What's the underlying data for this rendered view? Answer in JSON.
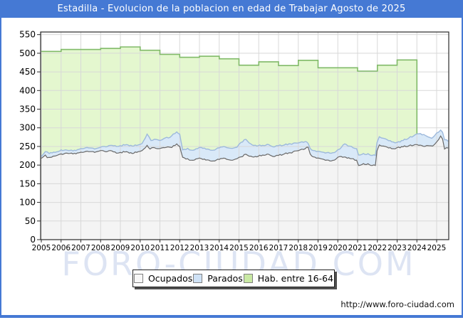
{
  "header": {
    "title": "Estadilla - Evolucion de la poblacion en edad de Trabajar Agosto de 2025"
  },
  "watermark": "FORO-CIUDAD.COM",
  "footer": {
    "url": "http://www.foro-ciudad.com"
  },
  "colors": {
    "frame_blue": "#4579d4",
    "plot_border": "#2a2a2a",
    "grid": "#d8d8d8",
    "hab_line": "#80ba68",
    "hab_fill": "#e4f7cf",
    "parados_line": "#9db9dc",
    "parados_fill": "#d9e9f8",
    "ocupados_line": "#686868",
    "ocupados_fill": "#f4f4f4",
    "watermark": "#dde4f3",
    "tick_label": "#000000"
  },
  "legend": {
    "items": [
      {
        "label": "Ocupados",
        "fill": "#f7f7f7",
        "border": "#808080"
      },
      {
        "label": "Parados",
        "fill": "#cfe2f6",
        "border": "#808080"
      },
      {
        "label": "Hab. entre 16-64",
        "fill": "#c9e9a4",
        "border": "#808080"
      }
    ]
  },
  "chart_data": {
    "type": "area",
    "title": "Estadilla - Evolucion de la poblacion en edad de Trabajar Agosto de 2025",
    "xlabel": "",
    "ylabel": "",
    "x_ticks": [
      2005,
      2006,
      2007,
      2008,
      2009,
      2010,
      2011,
      2012,
      2013,
      2014,
      2015,
      2016,
      2017,
      2018,
      2019,
      2020,
      2021,
      2022,
      2023,
      2024,
      2025
    ],
    "y_ticks": [
      0,
      50,
      100,
      150,
      200,
      250,
      300,
      350,
      400,
      450,
      500,
      550
    ],
    "ylim": [
      0,
      557
    ],
    "x_start": 2005.0,
    "x_end": 2025.58,
    "grid": true,
    "legend_position": "bottom-center",
    "series": [
      {
        "name": "Hab. entre 16-64",
        "mode": "yearly-step",
        "start_year": 2005,
        "end": 2024.0,
        "values": [
          505,
          510,
          510,
          513,
          517,
          508,
          497,
          489,
          492,
          485,
          468,
          477,
          467,
          481,
          461,
          461,
          452,
          468,
          482
        ]
      },
      {
        "name": "Parados",
        "mode": "stacked-top",
        "points": [
          [
            2005.0,
            223
          ],
          [
            2005.2,
            236
          ],
          [
            2005.4,
            231
          ],
          [
            2005.7,
            234
          ],
          [
            2006.0,
            241
          ],
          [
            2006.3,
            240
          ],
          [
            2006.6,
            238
          ],
          [
            2006.9,
            242
          ],
          [
            2007.1,
            244
          ],
          [
            2007.4,
            246
          ],
          [
            2007.7,
            243
          ],
          [
            2008.0,
            248
          ],
          [
            2008.2,
            250
          ],
          [
            2008.5,
            253
          ],
          [
            2008.8,
            250
          ],
          [
            2009.0,
            252
          ],
          [
            2009.3,
            255
          ],
          [
            2009.6,
            251
          ],
          [
            2009.9,
            254
          ],
          [
            2010.1,
            258
          ],
          [
            2010.35,
            283
          ],
          [
            2010.55,
            266
          ],
          [
            2010.8,
            269
          ],
          [
            2011.0,
            266
          ],
          [
            2011.2,
            271
          ],
          [
            2011.5,
            274
          ],
          [
            2011.85,
            289
          ],
          [
            2012.0,
            283
          ],
          [
            2012.15,
            241
          ],
          [
            2012.4,
            245
          ],
          [
            2012.6,
            240
          ],
          [
            2012.9,
            244
          ],
          [
            2013.1,
            247
          ],
          [
            2013.4,
            243
          ],
          [
            2013.7,
            240
          ],
          [
            2014.0,
            246
          ],
          [
            2014.3,
            249
          ],
          [
            2014.6,
            245
          ],
          [
            2014.9,
            248
          ],
          [
            2015.1,
            261
          ],
          [
            2015.35,
            269
          ],
          [
            2015.6,
            257
          ],
          [
            2015.9,
            251
          ],
          [
            2016.2,
            253
          ],
          [
            2016.5,
            255
          ],
          [
            2016.8,
            249
          ],
          [
            2017.0,
            252
          ],
          [
            2017.3,
            254
          ],
          [
            2017.6,
            257
          ],
          [
            2017.9,
            259
          ],
          [
            2018.1,
            261
          ],
          [
            2018.35,
            263
          ],
          [
            2018.5,
            258
          ],
          [
            2018.6,
            245
          ],
          [
            2018.75,
            239
          ],
          [
            2019.0,
            237
          ],
          [
            2019.3,
            234
          ],
          [
            2019.6,
            232
          ],
          [
            2019.9,
            236
          ],
          [
            2020.1,
            243
          ],
          [
            2020.35,
            257
          ],
          [
            2020.6,
            251
          ],
          [
            2020.95,
            244
          ],
          [
            2021.05,
            227
          ],
          [
            2021.3,
            231
          ],
          [
            2021.6,
            228
          ],
          [
            2021.9,
            226
          ],
          [
            2021.98,
            260
          ],
          [
            2022.1,
            276
          ],
          [
            2022.3,
            272
          ],
          [
            2022.5,
            268
          ],
          [
            2022.8,
            262
          ],
          [
            2023.0,
            261
          ],
          [
            2023.3,
            266
          ],
          [
            2023.6,
            273
          ],
          [
            2023.9,
            281
          ],
          [
            2024.1,
            284
          ],
          [
            2024.35,
            282
          ],
          [
            2024.55,
            276
          ],
          [
            2024.75,
            272
          ],
          [
            2024.9,
            279
          ],
          [
            2025.0,
            286
          ],
          [
            2025.2,
            294
          ],
          [
            2025.3,
            288
          ],
          [
            2025.4,
            268
          ],
          [
            2025.58,
            264
          ]
        ]
      },
      {
        "name": "Ocupados",
        "mode": "line",
        "points": [
          [
            2005.0,
            218
          ],
          [
            2005.2,
            227
          ],
          [
            2005.3,
            220
          ],
          [
            2005.6,
            224
          ],
          [
            2005.8,
            226
          ],
          [
            2006.0,
            230
          ],
          [
            2006.3,
            232
          ],
          [
            2006.6,
            230
          ],
          [
            2006.9,
            233
          ],
          [
            2007.1,
            234
          ],
          [
            2007.4,
            236
          ],
          [
            2007.7,
            234
          ],
          [
            2008.0,
            239
          ],
          [
            2008.2,
            237
          ],
          [
            2008.5,
            239
          ],
          [
            2008.8,
            232
          ],
          [
            2009.0,
            234
          ],
          [
            2009.3,
            236
          ],
          [
            2009.6,
            231
          ],
          [
            2009.9,
            236
          ],
          [
            2010.1,
            239
          ],
          [
            2010.35,
            253
          ],
          [
            2010.5,
            243
          ],
          [
            2010.7,
            247
          ],
          [
            2010.9,
            244
          ],
          [
            2011.1,
            246
          ],
          [
            2011.4,
            249
          ],
          [
            2011.6,
            247
          ],
          [
            2011.85,
            257
          ],
          [
            2012.0,
            250
          ],
          [
            2012.15,
            221
          ],
          [
            2012.4,
            217
          ],
          [
            2012.6,
            213
          ],
          [
            2012.9,
            217
          ],
          [
            2013.1,
            217
          ],
          [
            2013.4,
            214
          ],
          [
            2013.7,
            211
          ],
          [
            2014.0,
            215
          ],
          [
            2014.3,
            218
          ],
          [
            2014.6,
            213
          ],
          [
            2014.9,
            217
          ],
          [
            2015.1,
            222
          ],
          [
            2015.35,
            229
          ],
          [
            2015.6,
            224
          ],
          [
            2015.9,
            222
          ],
          [
            2016.2,
            227
          ],
          [
            2016.5,
            229
          ],
          [
            2016.8,
            223
          ],
          [
            2017.0,
            226
          ],
          [
            2017.3,
            230
          ],
          [
            2017.6,
            233
          ],
          [
            2017.9,
            238
          ],
          [
            2018.1,
            241
          ],
          [
            2018.35,
            244
          ],
          [
            2018.5,
            248
          ],
          [
            2018.6,
            230
          ],
          [
            2018.75,
            222
          ],
          [
            2019.0,
            219
          ],
          [
            2019.3,
            215
          ],
          [
            2019.6,
            211
          ],
          [
            2019.9,
            216
          ],
          [
            2020.1,
            223
          ],
          [
            2020.4,
            221
          ],
          [
            2020.7,
            217
          ],
          [
            2020.95,
            213
          ],
          [
            2021.05,
            199
          ],
          [
            2021.3,
            204
          ],
          [
            2021.6,
            201
          ],
          [
            2021.9,
            199
          ],
          [
            2021.98,
            238
          ],
          [
            2022.1,
            254
          ],
          [
            2022.3,
            251
          ],
          [
            2022.5,
            248
          ],
          [
            2022.8,
            244
          ],
          [
            2023.0,
            247
          ],
          [
            2023.3,
            249
          ],
          [
            2023.6,
            252
          ],
          [
            2023.9,
            255
          ],
          [
            2024.1,
            253
          ],
          [
            2024.4,
            250
          ],
          [
            2024.6,
            252
          ],
          [
            2024.8,
            251
          ],
          [
            2025.0,
            262
          ],
          [
            2025.2,
            278
          ],
          [
            2025.3,
            270
          ],
          [
            2025.4,
            243
          ],
          [
            2025.58,
            246
          ]
        ]
      }
    ]
  }
}
